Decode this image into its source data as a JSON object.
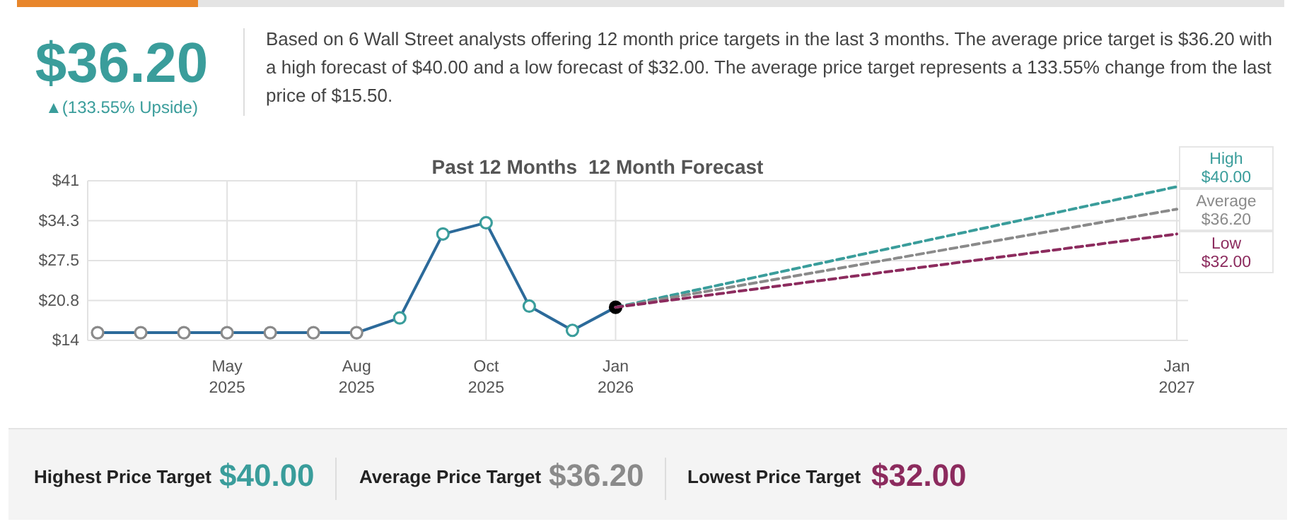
{
  "chart_data": {
    "type": "line",
    "categories": [
      null,
      null,
      null,
      "May\n2025",
      null,
      null,
      "Aug\n2025",
      null,
      null,
      "Oct\n2025",
      null,
      null,
      "Jan\n2026",
      null,
      null,
      null,
      null,
      null,
      null,
      null,
      null,
      null,
      null,
      null,
      null,
      "Jan\n2027"
    ],
    "series": [
      {
        "color": "#2c6a9a",
        "line_style": "solid",
        "marker": "circle",
        "colors": [
          "#8a8a8a",
          "#8a8a8a",
          "#8a8a8a",
          "#8a8a8a",
          "#8a8a8a",
          "#8a8a8a",
          "#8a8a8a",
          "#3a9d9b",
          "#3a9d9b",
          "#3a9d9b",
          "#3a9d9b",
          "#3a9d9b",
          "#000000",
          null,
          null,
          null,
          null,
          null,
          null,
          null,
          null,
          null,
          null,
          null,
          null,
          null
        ],
        "values": [
          15.3,
          15.3,
          15.3,
          15.3,
          15.3,
          15.3,
          15.3,
          17.8,
          32.0,
          33.9,
          19.8,
          15.7,
          19.6,
          null,
          null,
          null,
          null,
          null,
          null,
          null,
          null,
          null,
          null,
          null,
          null,
          null
        ]
      },
      {
        "name": "High",
        "color": "#3a9d9b",
        "line_style": "dashed",
        "marker": "none",
        "values": [
          null,
          null,
          null,
          null,
          null,
          null,
          null,
          null,
          null,
          null,
          null,
          null,
          19.6,
          null,
          null,
          null,
          null,
          null,
          null,
          null,
          null,
          null,
          null,
          null,
          null,
          40.0
        ],
        "value_labels": [
          null,
          null,
          null,
          null,
          null,
          null,
          null,
          null,
          null,
          null,
          null,
          null,
          null,
          null,
          null,
          null,
          null,
          null,
          null,
          null,
          null,
          null,
          null,
          null,
          null,
          "$40.00"
        ]
      },
      {
        "name": "Average",
        "color": "#8a8a8a",
        "line_style": "dashed",
        "marker": "none",
        "values": [
          null,
          null,
          null,
          null,
          null,
          null,
          null,
          null,
          null,
          null,
          null,
          null,
          19.6,
          null,
          null,
          null,
          null,
          null,
          null,
          null,
          null,
          null,
          null,
          null,
          null,
          36.2
        ],
        "value_labels": [
          null,
          null,
          null,
          null,
          null,
          null,
          null,
          null,
          null,
          null,
          null,
          null,
          null,
          null,
          null,
          null,
          null,
          null,
          null,
          null,
          null,
          null,
          null,
          null,
          null,
          "$36.20"
        ]
      },
      {
        "name": "Low",
        "color": "#8c2b5e",
        "line_style": "dashed",
        "marker": "none",
        "values": [
          null,
          null,
          null,
          null,
          null,
          null,
          null,
          null,
          null,
          null,
          null,
          null,
          19.6,
          null,
          null,
          null,
          null,
          null,
          null,
          null,
          null,
          null,
          null,
          null,
          null,
          32.0
        ],
        "value_labels": [
          null,
          null,
          null,
          null,
          null,
          null,
          null,
          null,
          null,
          null,
          null,
          null,
          null,
          null,
          null,
          null,
          null,
          null,
          null,
          null,
          null,
          null,
          null,
          null,
          null,
          "$32.00"
        ]
      }
    ],
    "ylim": [
      14,
      41
    ],
    "yticks": [
      {
        "value": 14,
        "label": "$14"
      },
      {
        "value": 20.75,
        "label": "$20.8"
      },
      {
        "value": 27.5,
        "label": "$27.5"
      },
      {
        "value": 34.25,
        "label": "$34.3"
      },
      {
        "value": 41,
        "label": "$41"
      }
    ],
    "grid": true,
    "annotations": [
      "$36.20",
      "▲(133.55% Upside)",
      "Based on 6 Wall Street analysts offering 12 month price targets in the last 3 months. The average price target is $36.20 with a high forecast of $40.00 and a low forecast of $32.00. The average price target represents a 133.55% change from the last price of $15.50.",
      "Past 12 Months",
      "12 Month Forecast",
      "Highest Price Target",
      "$40.00",
      "Average Price Target",
      "$36.20",
      "Lowest Price Target",
      "$32.00"
    ]
  }
}
